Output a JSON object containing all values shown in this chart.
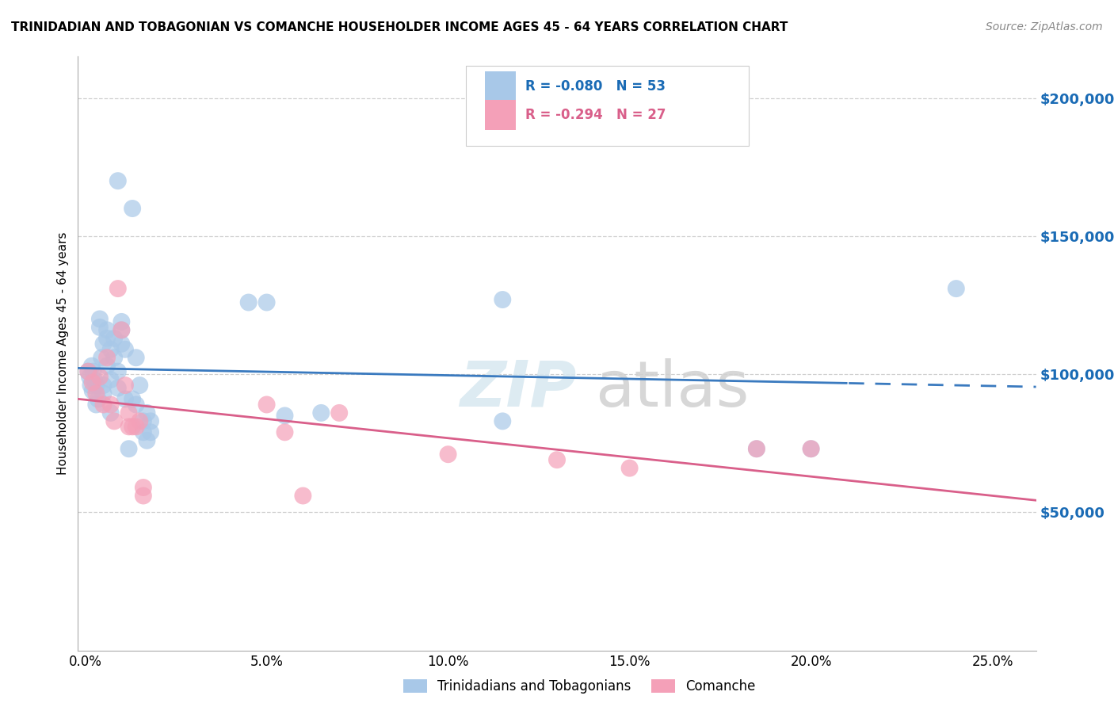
{
  "title": "TRINIDADIAN AND TOBAGONIAN VS COMANCHE HOUSEHOLDER INCOME AGES 45 - 64 YEARS CORRELATION CHART",
  "source": "Source: ZipAtlas.com",
  "xlabel_ticks": [
    "0.0%",
    "5.0%",
    "10.0%",
    "15.0%",
    "20.0%",
    "25.0%"
  ],
  "xlabel_vals": [
    0.0,
    0.05,
    0.1,
    0.15,
    0.2,
    0.25
  ],
  "ylabel_ticks": [
    "$50,000",
    "$100,000",
    "$150,000",
    "$200,000"
  ],
  "ylabel_vals": [
    50000,
    100000,
    150000,
    200000
  ],
  "ylim": [
    0,
    215000
  ],
  "xlim": [
    -0.002,
    0.262
  ],
  "ylabel": "Householder Income Ages 45 - 64 years",
  "watermark_zip": "ZIP",
  "watermark_atlas": "atlas",
  "legend1_R": "-0.080",
  "legend1_N": "53",
  "legend2_R": "-0.294",
  "legend2_N": "27",
  "blue_color": "#a8c8e8",
  "pink_color": "#f4a0b8",
  "blue_line_color": "#3a7abf",
  "pink_line_color": "#d95f8a",
  "blue_scatter": [
    [
      0.0008,
      101000
    ],
    [
      0.0012,
      99000
    ],
    [
      0.0015,
      96000
    ],
    [
      0.0018,
      103000
    ],
    [
      0.002,
      94000
    ],
    [
      0.0022,
      101000
    ],
    [
      0.0025,
      98000
    ],
    [
      0.003,
      96000
    ],
    [
      0.003,
      89000
    ],
    [
      0.0035,
      91000
    ],
    [
      0.004,
      120000
    ],
    [
      0.004,
      117000
    ],
    [
      0.0045,
      106000
    ],
    [
      0.005,
      111000
    ],
    [
      0.005,
      96000
    ],
    [
      0.005,
      93000
    ],
    [
      0.006,
      116000
    ],
    [
      0.006,
      113000
    ],
    [
      0.006,
      103000
    ],
    [
      0.007,
      109000
    ],
    [
      0.007,
      98000
    ],
    [
      0.007,
      86000
    ],
    [
      0.008,
      113000
    ],
    [
      0.008,
      106000
    ],
    [
      0.009,
      170000
    ],
    [
      0.009,
      101000
    ],
    [
      0.009,
      95000
    ],
    [
      0.01,
      119000
    ],
    [
      0.01,
      116000
    ],
    [
      0.01,
      111000
    ],
    [
      0.011,
      109000
    ],
    [
      0.011,
      91000
    ],
    [
      0.012,
      73000
    ],
    [
      0.013,
      160000
    ],
    [
      0.013,
      91000
    ],
    [
      0.014,
      106000
    ],
    [
      0.014,
      89000
    ],
    [
      0.015,
      96000
    ],
    [
      0.016,
      83000
    ],
    [
      0.016,
      79000
    ],
    [
      0.017,
      86000
    ],
    [
      0.017,
      76000
    ],
    [
      0.018,
      83000
    ],
    [
      0.018,
      79000
    ],
    [
      0.045,
      126000
    ],
    [
      0.05,
      126000
    ],
    [
      0.055,
      85000
    ],
    [
      0.065,
      86000
    ],
    [
      0.115,
      127000
    ],
    [
      0.185,
      73000
    ],
    [
      0.2,
      73000
    ],
    [
      0.24,
      131000
    ],
    [
      0.115,
      83000
    ]
  ],
  "pink_scatter": [
    [
      0.0008,
      101000
    ],
    [
      0.002,
      97000
    ],
    [
      0.003,
      93000
    ],
    [
      0.004,
      99000
    ],
    [
      0.005,
      89000
    ],
    [
      0.006,
      106000
    ],
    [
      0.007,
      89000
    ],
    [
      0.008,
      83000
    ],
    [
      0.009,
      131000
    ],
    [
      0.01,
      116000
    ],
    [
      0.011,
      96000
    ],
    [
      0.012,
      86000
    ],
    [
      0.012,
      81000
    ],
    [
      0.013,
      81000
    ],
    [
      0.014,
      81000
    ],
    [
      0.015,
      83000
    ],
    [
      0.016,
      59000
    ],
    [
      0.016,
      56000
    ],
    [
      0.05,
      89000
    ],
    [
      0.055,
      79000
    ],
    [
      0.06,
      56000
    ],
    [
      0.1,
      71000
    ],
    [
      0.13,
      69000
    ],
    [
      0.15,
      66000
    ],
    [
      0.185,
      73000
    ],
    [
      0.2,
      73000
    ],
    [
      0.07,
      86000
    ]
  ],
  "background_color": "#ffffff",
  "grid_color": "#d0d0d0"
}
